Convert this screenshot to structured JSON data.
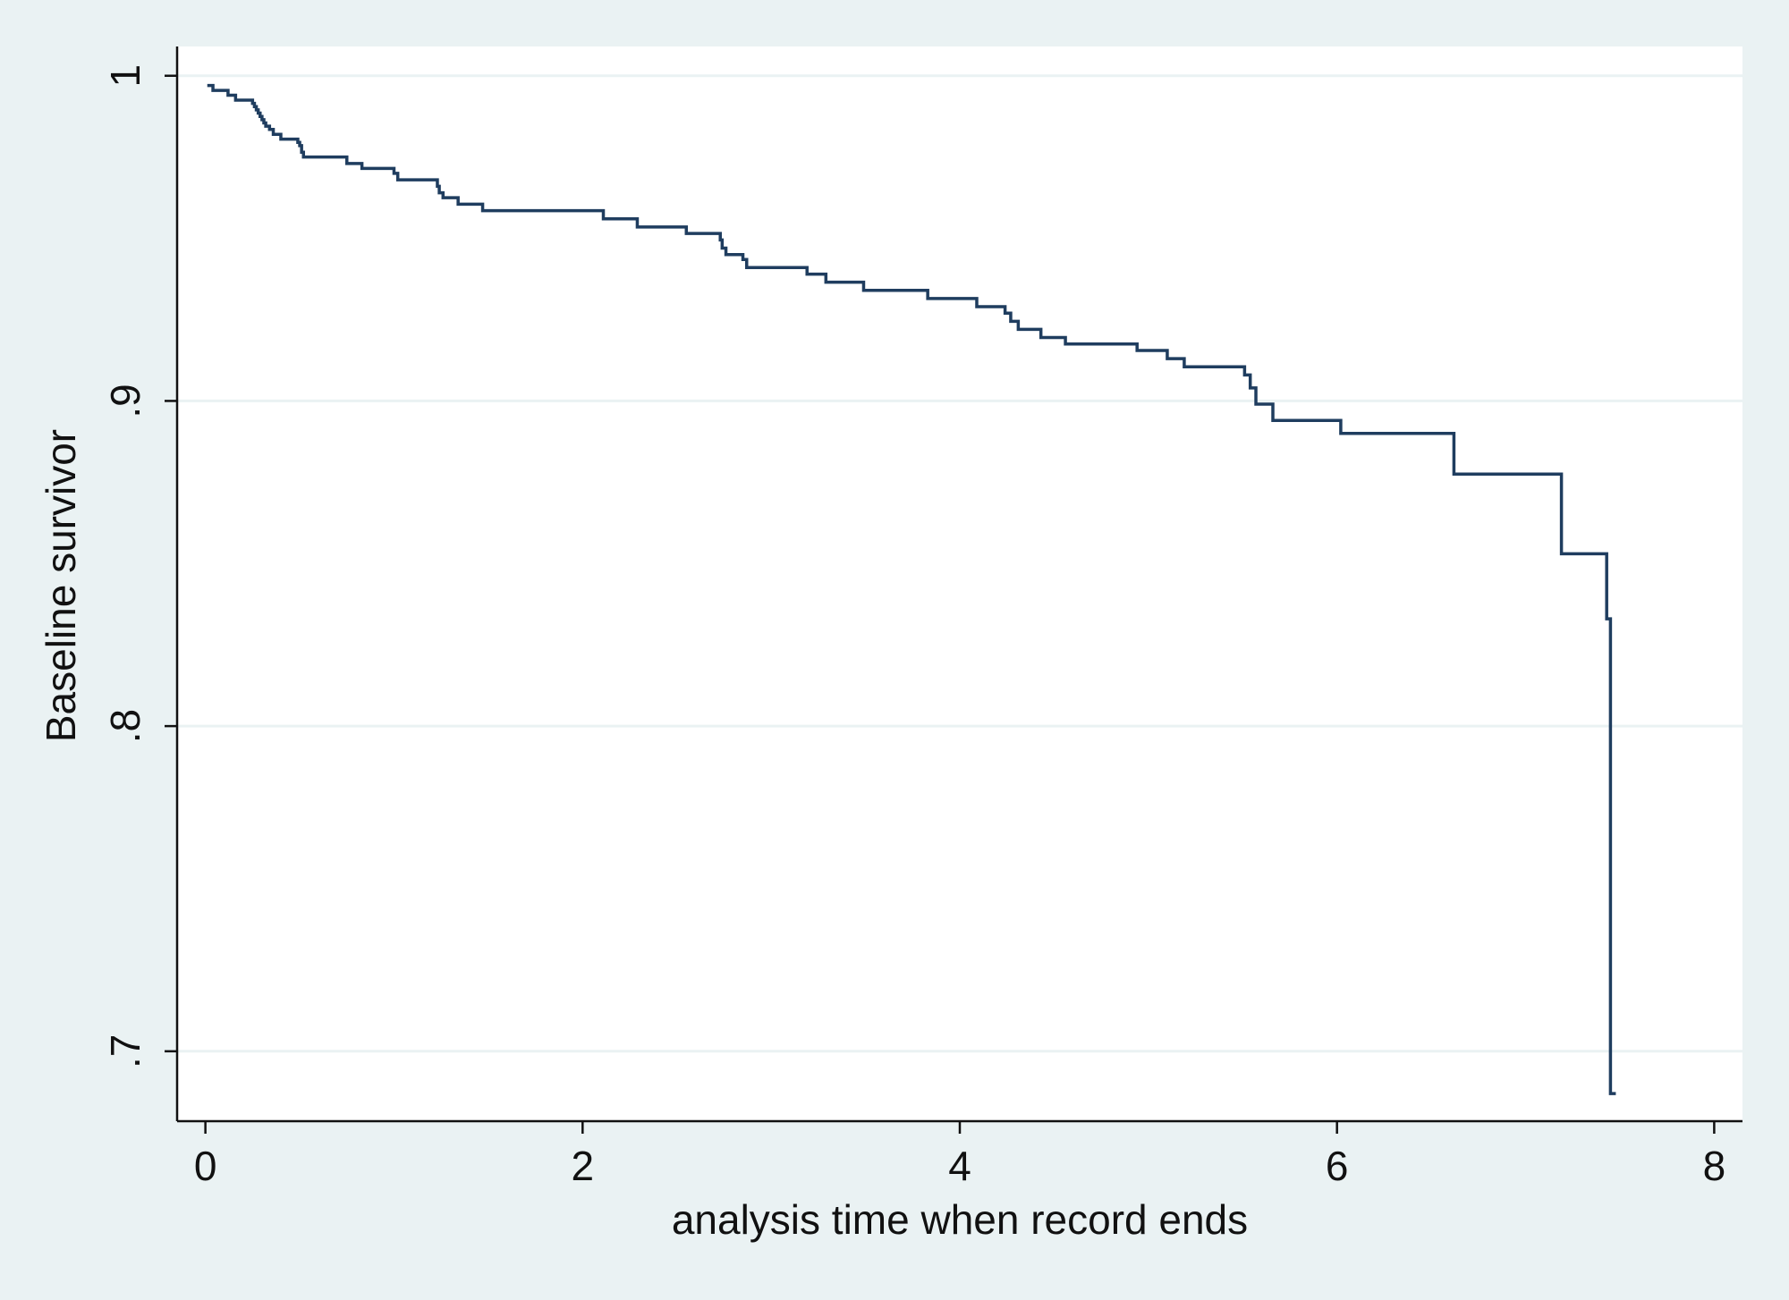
{
  "chart_data": {
    "type": "line",
    "step": true,
    "title": "",
    "xlabel": "analysis time when record ends",
    "ylabel": "Baseline survivor",
    "xlim": [
      -0.15,
      8.15
    ],
    "ylim": [
      0.6785,
      1.009
    ],
    "xticks": [
      0,
      2,
      4,
      6,
      8
    ],
    "xtick_labels": [
      "0",
      "2",
      "4",
      "6",
      "8"
    ],
    "yticks": [
      0.7,
      0.8,
      0.9,
      1.0
    ],
    "ytick_labels": [
      ".7",
      ".8",
      ".9",
      "1"
    ],
    "grid": "horizontal",
    "legend": "none",
    "colors": {
      "background": "#eaf2f3",
      "plot_area": "#ffffff",
      "line": "#1f3d5f",
      "grid": "#eaf2f3",
      "axis": "#111111"
    },
    "series": [
      {
        "x": [
          0.01,
          0.04,
          0.12,
          0.16,
          0.25,
          0.26,
          0.27,
          0.28,
          0.29,
          0.3,
          0.31,
          0.32,
          0.34,
          0.36,
          0.4,
          0.49,
          0.5,
          0.51,
          0.52,
          0.75,
          0.83,
          1.0,
          1.02,
          1.23,
          1.24,
          1.26,
          1.34,
          1.47,
          2.11,
          2.29,
          2.55,
          2.73,
          2.74,
          2.76,
          2.85,
          2.87,
          3.19,
          3.29,
          3.49,
          3.83,
          4.09,
          4.24,
          4.27,
          4.31,
          4.43,
          4.56,
          4.94,
          5.1,
          5.19,
          5.51,
          5.54,
          5.57,
          5.66,
          6.02,
          6.62,
          7.19,
          7.43,
          7.45
        ],
        "y": [
          0.997,
          0.9955,
          0.994,
          0.9925,
          0.9915,
          0.9905,
          0.9895,
          0.9885,
          0.9875,
          0.9865,
          0.9855,
          0.9845,
          0.9835,
          0.982,
          0.9805,
          0.9795,
          0.9785,
          0.9765,
          0.975,
          0.973,
          0.9715,
          0.97,
          0.968,
          0.966,
          0.964,
          0.9625,
          0.9605,
          0.9585,
          0.956,
          0.9535,
          0.9515,
          0.9495,
          0.947,
          0.945,
          0.9435,
          0.941,
          0.939,
          0.9365,
          0.934,
          0.9315,
          0.929,
          0.927,
          0.9245,
          0.922,
          0.9195,
          0.9175,
          0.9155,
          0.913,
          0.9105,
          0.908,
          0.904,
          0.899,
          0.894,
          0.89,
          0.8775,
          0.853,
          0.833,
          0.687
        ]
      }
    ]
  }
}
